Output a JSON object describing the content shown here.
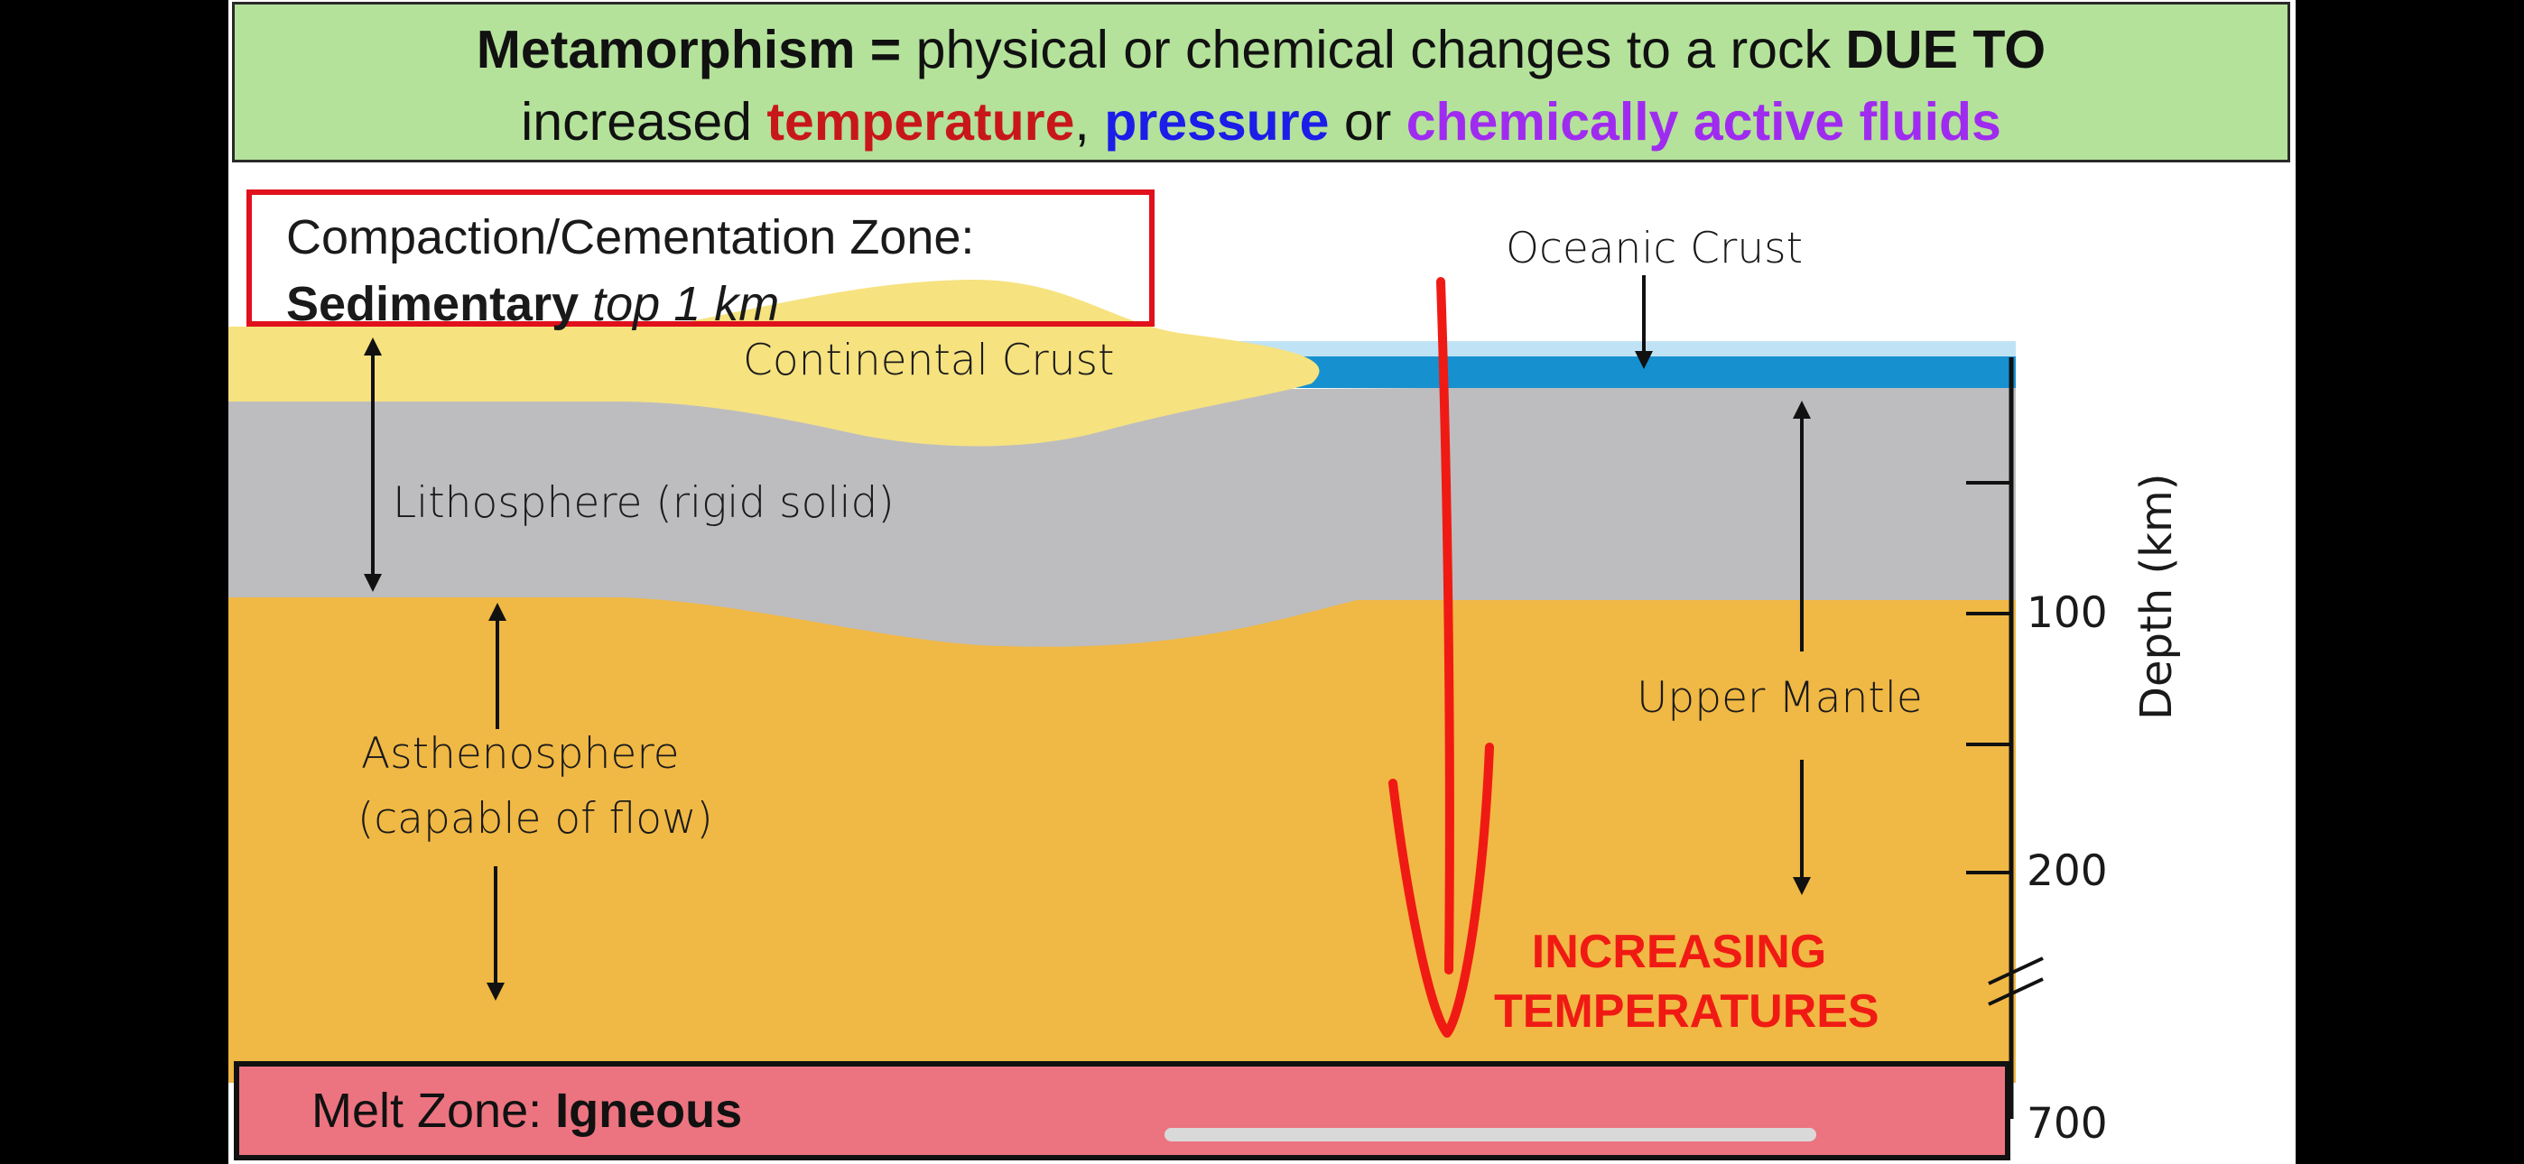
{
  "header": {
    "line1_bold": "Metamorphism =",
    "line1_text": " physical or chemical changes to a rock ",
    "line1_bold2": "DUE TO",
    "line2_text": "increased ",
    "temperature": "temperature",
    "comma": ", ",
    "pressure": "pressure",
    "or": " or ",
    "fluids": "chemically active fluids"
  },
  "compaction_box": {
    "title": "Compaction/Cementation Zone:",
    "bold": "Sedimentary",
    "italic": " top 1 km"
  },
  "labels": {
    "continental_crust": "Continental Crust",
    "oceanic_crust": "Oceanic Crust",
    "lithosphere": "Lithosphere (rigid solid)",
    "asthenosphere_1": "Asthenosphere",
    "asthenosphere_2": "(capable of flow)",
    "upper_mantle": "Upper Mantle",
    "increasing_1": "INCREASING",
    "increasing_2": "TEMPERATURES"
  },
  "depth_axis": {
    "label": "Depth (km)",
    "ticks": [
      "100",
      "200",
      "700"
    ]
  },
  "melt_zone": {
    "text": "Melt Zone: ",
    "bold": "Igneous"
  },
  "colors": {
    "header_bg": "#b4e29a",
    "continental_crust": "#f6e27f",
    "oceanic_crust": "#1790d0",
    "lithosphere": "#bdbdbf",
    "mantle": "#f0b844",
    "melt_zone": "#ec7480",
    "annotation_red": "#f01a14"
  }
}
